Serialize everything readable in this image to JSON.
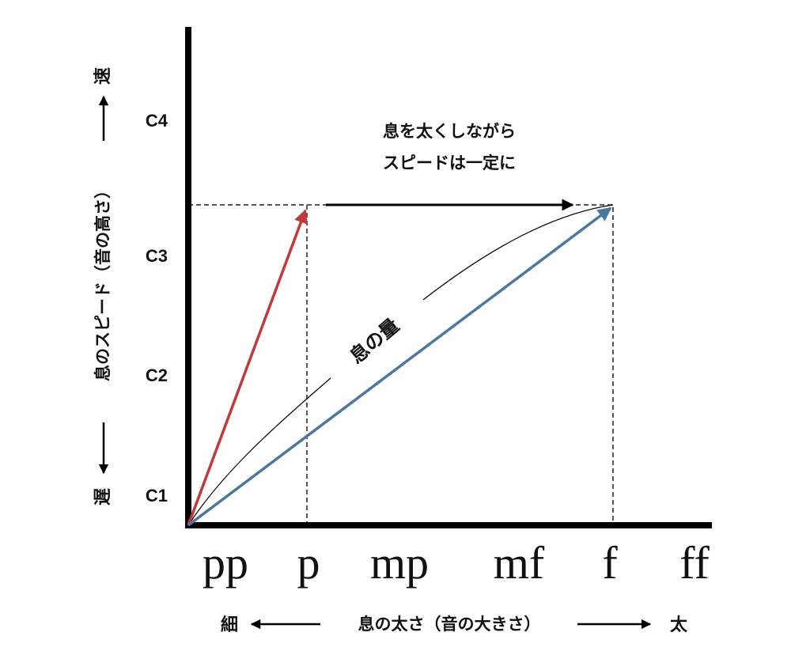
{
  "y_axis": {
    "ticks": [
      "C4",
      "C3",
      "C2",
      "C1"
    ],
    "label": "息のスピード（音の高さ）",
    "top_end": "速",
    "bottom_end": "遅"
  },
  "x_axis": {
    "ticks": [
      "pp",
      "p",
      "mp",
      "mf",
      "f",
      "ff"
    ],
    "label": "息の太さ（音の大きさ）",
    "left_end": "細",
    "right_end": "太"
  },
  "annotation": {
    "line1": "息を太くしながら",
    "line2": "スピードは一定に"
  },
  "curve_label": "息の量",
  "colors": {
    "red_arrow": "#c0393b",
    "blue_arrow": "#4a78a0",
    "dashed_box": "#555566",
    "axis": "#000000"
  }
}
